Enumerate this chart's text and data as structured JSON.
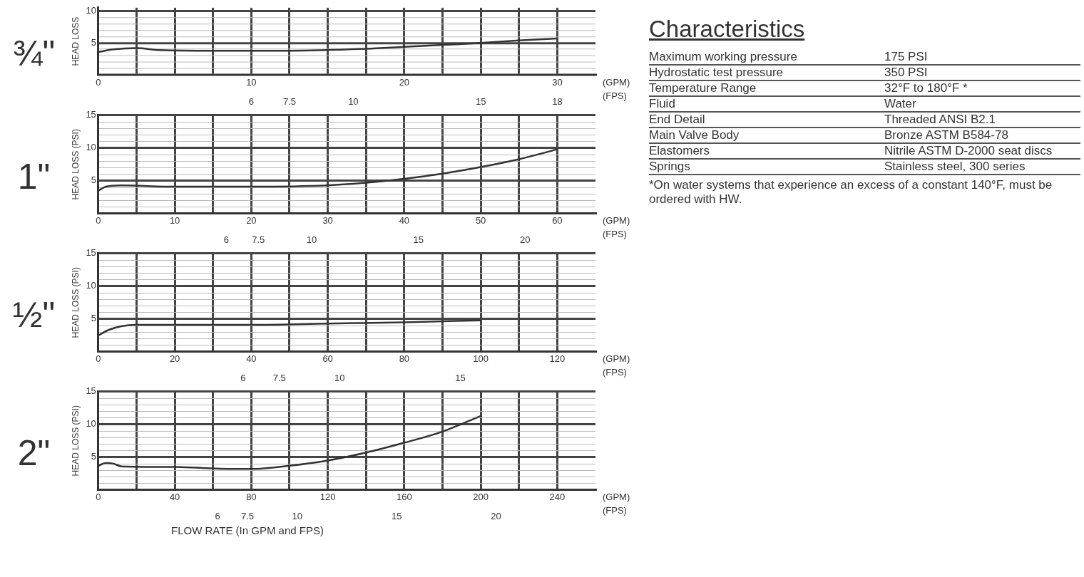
{
  "chart_data": [
    {
      "type": "line",
      "title": "¾\"",
      "ylabel": "HEAD LOSS",
      "x": [
        0,
        1,
        2.5,
        4,
        7.5,
        12.5,
        17.5,
        20,
        22.5,
        25,
        27.5,
        30
      ],
      "series": [
        {
          "color": "#333333",
          "values": [
            3.6,
            4.0,
            4.2,
            3.9,
            3.8,
            3.8,
            4.1,
            4.4,
            4.7,
            5.0,
            5.4,
            5.7
          ]
        }
      ],
      "xlim": [
        0,
        32.5
      ],
      "xticks": [
        0,
        {
          "value": 2.5,
          "label": null
        },
        {
          "value": 5,
          "label": null
        },
        {
          "value": 7.5,
          "label": null
        },
        10,
        {
          "value": 12.5,
          "label": null
        },
        {
          "value": 15,
          "label": null
        },
        {
          "value": 17.5,
          "label": null
        },
        20,
        {
          "value": 22.5,
          "label": null
        },
        {
          "value": 25,
          "label": null
        },
        {
          "value": 27.5,
          "label": null
        },
        30
      ],
      "x2lim": [
        0,
        19.5
      ],
      "x2ticks": [
        6,
        7.5,
        10,
        15,
        18
      ],
      "ylim": [
        0,
        10.5
      ],
      "yticks": [
        {
          "value": 1,
          "label": null
        },
        {
          "value": 2,
          "label": null
        },
        {
          "value": 3,
          "label": null
        },
        {
          "value": 4,
          "label": null
        },
        5,
        {
          "value": 6,
          "label": null
        },
        {
          "value": 7,
          "label": null
        },
        {
          "value": 8,
          "label": null
        },
        {
          "value": 9,
          "label": null
        },
        10
      ],
      "annotations": [
        "(GPM)",
        "(FPS)"
      ],
      "grid": true,
      "legend": false,
      "marker": "none",
      "line_style": "solid"
    },
    {
      "type": "line",
      "title": "1\"",
      "ylabel": "HEAD LOSS (PSI)",
      "x": [
        0,
        1,
        3,
        10,
        20,
        30,
        35,
        40,
        45,
        50,
        55,
        60
      ],
      "series": [
        {
          "color": "#333333",
          "values": [
            3.5,
            4.1,
            4.3,
            4.1,
            4.1,
            4.3,
            4.7,
            5.3,
            6.1,
            7.1,
            8.3,
            9.8
          ]
        }
      ],
      "xlim": [
        0,
        65
      ],
      "xticks": [
        0,
        {
          "value": 5,
          "label": null
        },
        10,
        {
          "value": 15,
          "label": null
        },
        20,
        {
          "value": 25,
          "label": null
        },
        30,
        {
          "value": 35,
          "label": null
        },
        40,
        {
          "value": 45,
          "label": null
        },
        50,
        {
          "value": 55,
          "label": null
        },
        60
      ],
      "x2lim": [
        0,
        23.3
      ],
      "x2ticks": [
        6,
        7.5,
        10,
        15,
        20
      ],
      "ylim": [
        0,
        15
      ],
      "yticks": [
        {
          "value": 1,
          "label": null
        },
        {
          "value": 2,
          "label": null
        },
        {
          "value": 3,
          "label": null
        },
        {
          "value": 4,
          "label": null
        },
        5,
        {
          "value": 6,
          "label": null
        },
        {
          "value": 7,
          "label": null
        },
        {
          "value": 8,
          "label": null
        },
        {
          "value": 9,
          "label": null
        },
        10,
        {
          "value": 11,
          "label": null
        },
        {
          "value": 12,
          "label": null
        },
        {
          "value": 13,
          "label": null
        },
        {
          "value": 14,
          "label": null
        },
        15
      ],
      "annotations": [
        "(GPM)",
        "(FPS)"
      ],
      "grid": true,
      "legend": false,
      "marker": "none",
      "line_style": "solid"
    },
    {
      "type": "line",
      "title": "½\"",
      "ylabel": "HEAD LOSS (PSI)",
      "x": [
        0,
        3,
        6,
        10,
        20,
        40,
        60,
        80,
        100
      ],
      "series": [
        {
          "color": "#333333",
          "values": [
            2.5,
            3.4,
            3.9,
            4.1,
            4.1,
            4.1,
            4.3,
            4.5,
            4.8
          ]
        }
      ],
      "xlim": [
        0,
        130
      ],
      "xticks": [
        0,
        {
          "value": 10,
          "label": null
        },
        20,
        {
          "value": 30,
          "label": null
        },
        40,
        {
          "value": 50,
          "label": null
        },
        60,
        {
          "value": 70,
          "label": null
        },
        80,
        {
          "value": 90,
          "label": null
        },
        100,
        {
          "value": 110,
          "label": null
        },
        120
      ],
      "x2lim": [
        0,
        20.6
      ],
      "x2ticks": [
        6,
        7.5,
        10,
        15
      ],
      "ylim": [
        0,
        15
      ],
      "yticks": [
        {
          "value": 1,
          "label": null
        },
        {
          "value": 2,
          "label": null
        },
        {
          "value": 3,
          "label": null
        },
        {
          "value": 4,
          "label": null
        },
        5,
        {
          "value": 6,
          "label": null
        },
        {
          "value": 7,
          "label": null
        },
        {
          "value": 8,
          "label": null
        },
        {
          "value": 9,
          "label": null
        },
        10,
        {
          "value": 11,
          "label": null
        },
        {
          "value": 12,
          "label": null
        },
        {
          "value": 13,
          "label": null
        },
        {
          "value": 14,
          "label": null
        },
        15
      ],
      "annotations": [
        "(GPM)",
        "(FPS)"
      ],
      "grid": true,
      "legend": false,
      "marker": "none",
      "line_style": "solid"
    },
    {
      "type": "line",
      "title": "2\"",
      "ylabel": "HEAD LOSS (PSI)",
      "xlabel": "FLOW RATE (In GPM and FPS)",
      "x": [
        0,
        4,
        8,
        12,
        40,
        70,
        80,
        100,
        120,
        140,
        160,
        180,
        200
      ],
      "series": [
        {
          "color": "#333333",
          "values": [
            3.7,
            4.1,
            4.0,
            3.6,
            3.5,
            3.2,
            3.2,
            3.7,
            4.5,
            5.7,
            7.2,
            8.9,
            11.3
          ]
        }
      ],
      "xlim": [
        0,
        260
      ],
      "xticks": [
        0,
        {
          "value": 20,
          "label": null
        },
        40,
        {
          "value": 60,
          "label": null
        },
        80,
        {
          "value": 100,
          "label": null
        },
        120,
        {
          "value": 140,
          "label": null
        },
        160,
        {
          "value": 180,
          "label": null
        },
        200,
        {
          "value": 220,
          "label": null
        },
        240
      ],
      "x2lim": [
        0,
        25
      ],
      "x2ticks": [
        6,
        7.5,
        10,
        15,
        20
      ],
      "ylim": [
        0,
        15
      ],
      "yticks": [
        {
          "value": 1,
          "label": null
        },
        {
          "value": 2,
          "label": null
        },
        {
          "value": 3,
          "label": null
        },
        {
          "value": 4,
          "label": null
        },
        5,
        {
          "value": 6,
          "label": null
        },
        {
          "value": 7,
          "label": null
        },
        {
          "value": 8,
          "label": null
        },
        {
          "value": 9,
          "label": null
        },
        10,
        {
          "value": 11,
          "label": null
        },
        {
          "value": 12,
          "label": null
        },
        {
          "value": 13,
          "label": null
        },
        {
          "value": 14,
          "label": null
        },
        15
      ],
      "annotations": [
        "(GPM)",
        "(FPS)"
      ],
      "grid": true,
      "legend": false,
      "marker": "none",
      "line_style": "solid"
    },
    {
      "type": "other",
      "title": "Characteristics",
      "annotations": [
        "Maximum working pressure",
        "175 PSI",
        "Hydrostatic test pressure",
        "350 PSI",
        "Temperature Range",
        "32°F to 180°F *",
        "Fluid",
        "Water",
        "End Detail",
        "Threaded ANSI B2.1",
        "Main Valve Body",
        "Bronze ASTM B584-78",
        "Elastomers",
        "Nitrile ASTM D-2000 seat discs",
        "Springs",
        "Stainless steel, 300 series",
        "*On water systems that experience an excess of a constant 140°F, must be ordered with HW."
      ]
    }
  ]
}
